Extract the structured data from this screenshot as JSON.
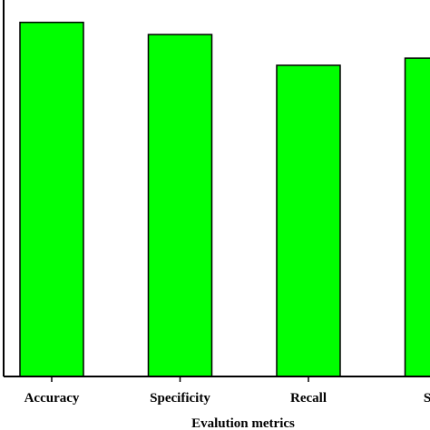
{
  "chart_data": {
    "type": "bar",
    "categories": [
      "Accuracy",
      "Specificity",
      "Recall",
      "Sens"
    ],
    "values": [
      0.99,
      0.956,
      0.87,
      0.89
    ],
    "title": "",
    "xlabel": "Evalution metrics",
    "ylabel": "",
    "ylim": [
      0,
      1.05
    ],
    "grid": false,
    "legend": "none",
    "bar_color": "#00ff00",
    "bar_edge_color": "#000000",
    "axis_color": "#000000"
  }
}
